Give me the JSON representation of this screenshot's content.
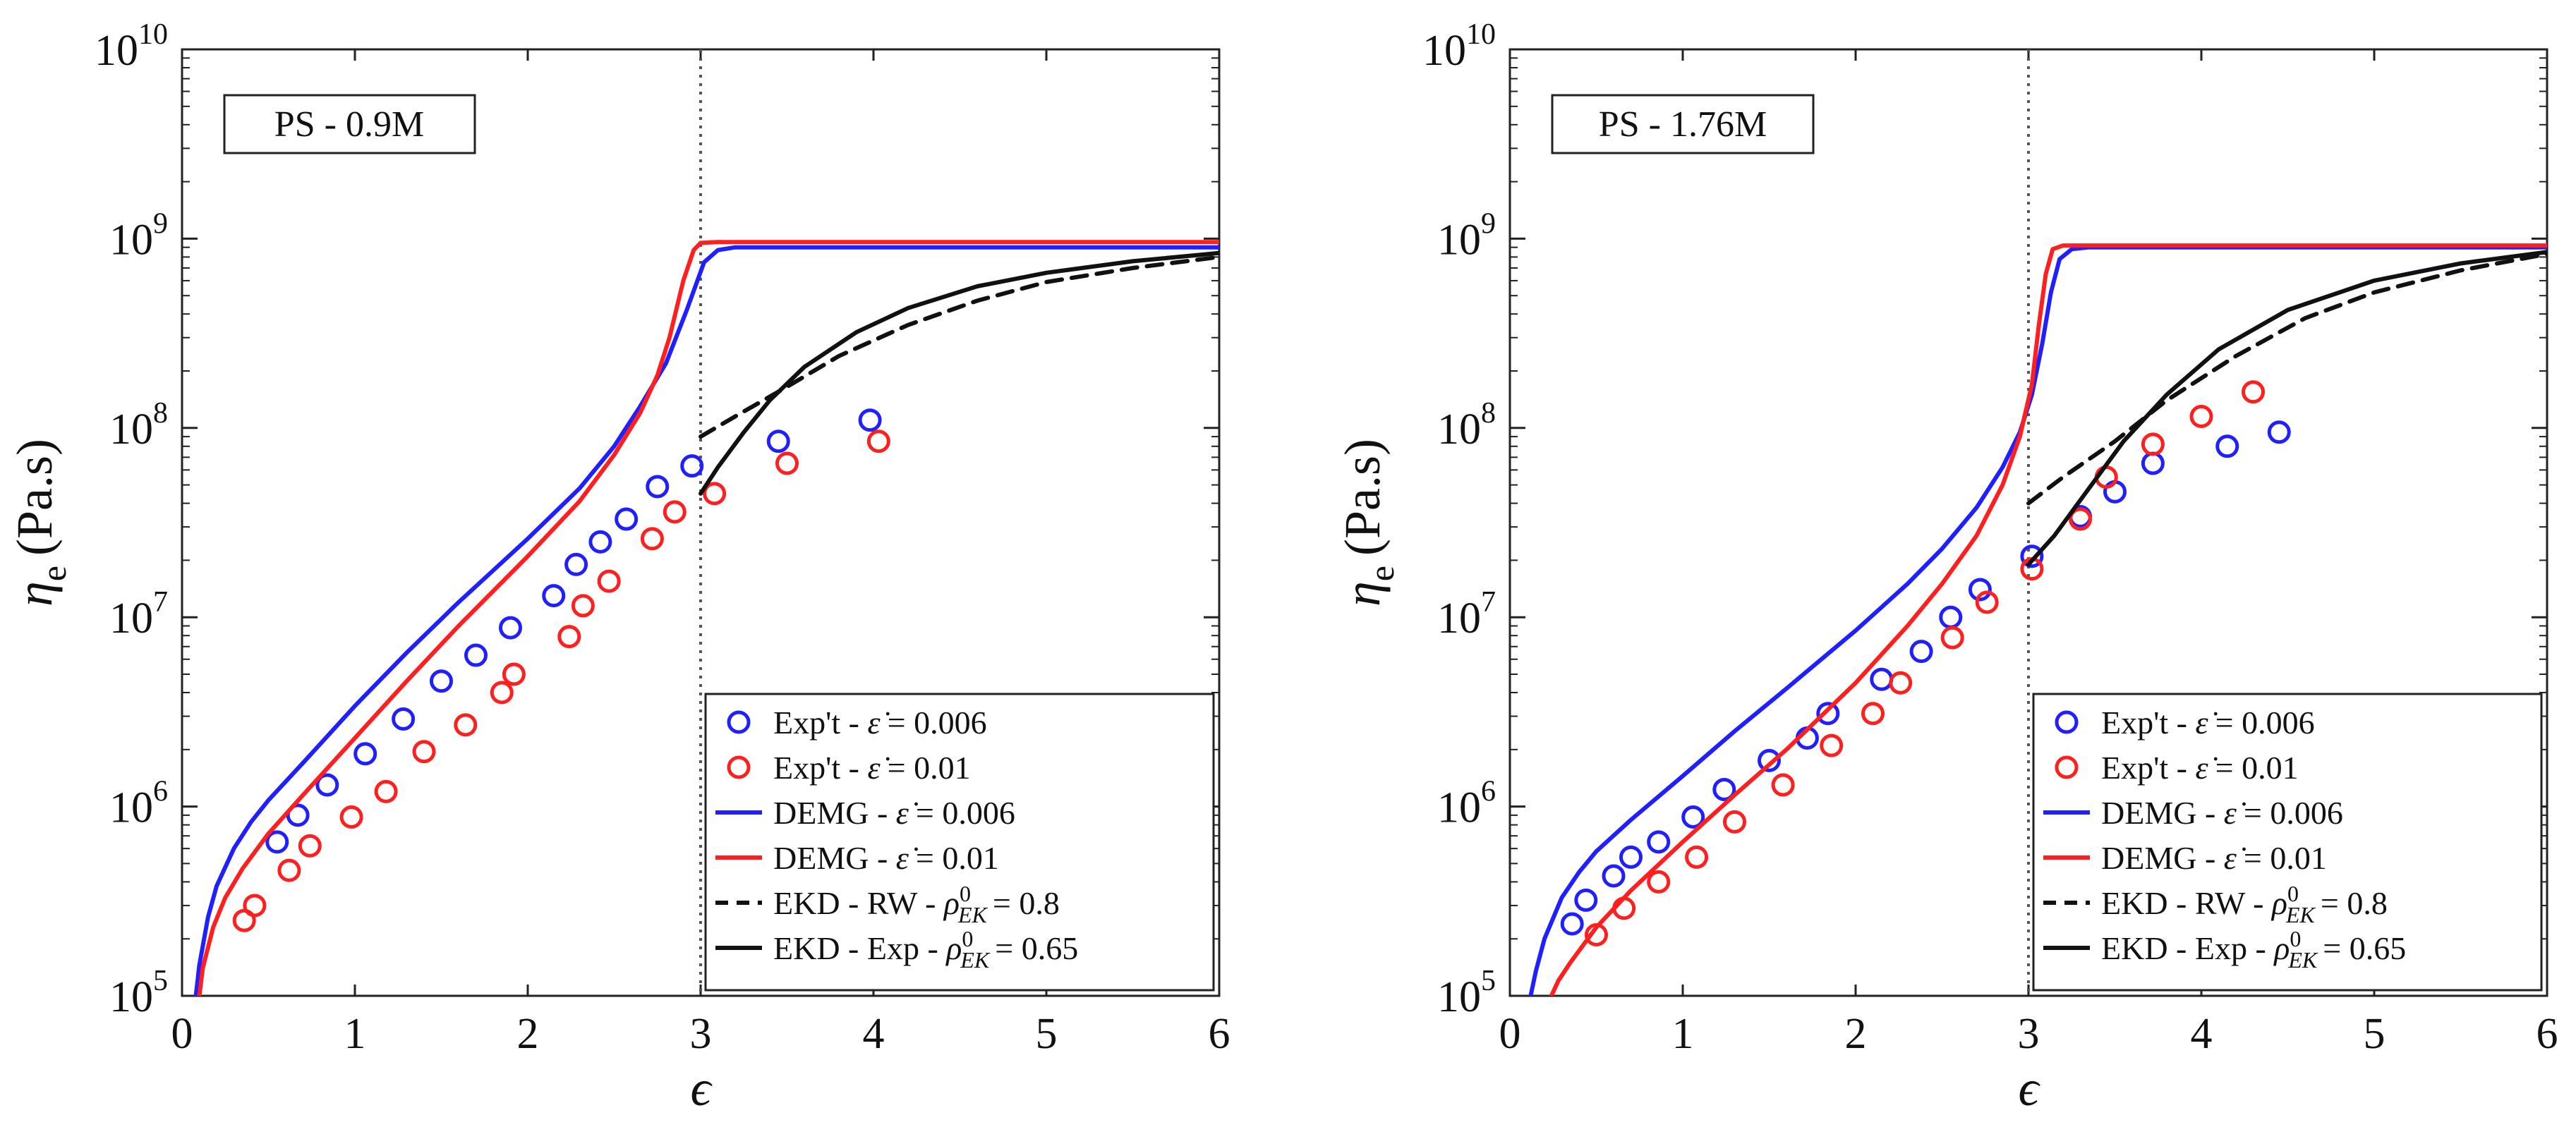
{
  "chart_data": [
    {
      "type": "scatter+line",
      "title": "PS - 0.9M",
      "xlabel": "ϵ",
      "ylabel": "η",
      "ylabel_sub": "e",
      "ylabel_unit": "(Pa.s)",
      "xlim": [
        0,
        6
      ],
      "ylim": [
        100000,
        10000000000
      ],
      "yscale": "log",
      "xticks": [
        "0",
        "1",
        "2",
        "3",
        "4",
        "5",
        "6"
      ],
      "yticks": [
        {
          "base": "10",
          "exp": "5"
        },
        {
          "base": "10",
          "exp": "6"
        },
        {
          "base": "10",
          "exp": "7"
        },
        {
          "base": "10",
          "exp": "8"
        },
        {
          "base": "10",
          "exp": "9"
        },
        {
          "base": "10",
          "exp": "10"
        }
      ],
      "vline_x": 3,
      "legend_position": "bottom-right",
      "series": [
        {
          "name": "Exp't - ε̇ = 0.006",
          "label": "Exp't - ",
          "rate": "= 0.006",
          "kind": "marker",
          "color": "#1f1fff",
          "x": [
            0.55,
            0.67,
            0.84,
            1.06,
            1.28,
            1.5,
            1.7,
            1.9,
            2.15,
            2.28,
            2.42,
            2.57,
            2.75,
            2.95,
            3.45,
            3.98
          ],
          "y": [
            650000,
            900000,
            1300000,
            1900000,
            2900000,
            4600000,
            6300000,
            8800000,
            13000000,
            19000000,
            25000000,
            33000000,
            49000000,
            63000000,
            85000000,
            110000000
          ]
        },
        {
          "name": "Exp't - ε̇ = 0.01",
          "label": "Exp't - ",
          "rate": "= 0.01",
          "kind": "marker",
          "color": "#ff1f1f",
          "x": [
            0.36,
            0.42,
            0.62,
            0.74,
            0.98,
            1.18,
            1.4,
            1.64,
            1.85,
            1.92,
            2.24,
            2.32,
            2.47,
            2.72,
            2.85,
            3.08,
            3.5,
            4.03
          ],
          "y": [
            250000,
            300000,
            460000,
            620000,
            880000,
            1200000,
            1950000,
            2700000,
            4000000,
            5000000,
            7900000,
            11500000,
            15500000,
            26000000,
            36000000,
            45000000,
            65000000,
            85000000
          ]
        },
        {
          "name": "DEMG - ε̇ = 0.006",
          "label": "DEMG - ",
          "rate": "= 0.006",
          "kind": "line",
          "color": "#1f1fff",
          "dash": "solid",
          "x": [
            0.08,
            0.1,
            0.15,
            0.2,
            0.3,
            0.4,
            0.5,
            0.7,
            1,
            1.3,
            1.6,
            2,
            2.3,
            2.5,
            2.65,
            2.8,
            2.92,
            3.02,
            3.1,
            3.2,
            3.5,
            4,
            5,
            6
          ],
          "y": [
            100000,
            145000,
            260000,
            380000,
            600000,
            830000,
            1080000,
            1700000,
            3400000,
            6500000,
            12000000,
            26000000,
            48000000,
            80000000,
            130000000,
            220000000,
            420000000,
            750000000,
            870000000,
            900000000,
            900000000,
            900000000,
            900000000,
            900000000
          ]
        },
        {
          "name": "DEMG - ε̇ = 0.01",
          "label": "DEMG - ",
          "rate": "= 0.01",
          "kind": "line",
          "color": "#ff1f1f",
          "dash": "solid",
          "x": [
            0.1,
            0.12,
            0.18,
            0.25,
            0.35,
            0.5,
            0.7,
            1,
            1.3,
            1.6,
            2,
            2.3,
            2.5,
            2.65,
            2.75,
            2.82,
            2.9,
            2.96,
            3,
            3.1,
            4,
            5,
            6
          ],
          "y": [
            100000,
            140000,
            230000,
            330000,
            470000,
            720000,
            1150000,
            2300000,
            4600000,
            9000000,
            21000000,
            41000000,
            72000000,
            120000000,
            190000000,
            300000000,
            600000000,
            870000000,
            950000000,
            960000000,
            960000000,
            960000000,
            960000000
          ]
        },
        {
          "name": "EKD - RW - ρ⁰EK = 0.8",
          "label": "EKD - RW - ",
          "rate": "= 0.8",
          "kind": "line",
          "color": "#111111",
          "dash": "dashed",
          "x": [
            3,
            3.2,
            3.5,
            3.8,
            4.2,
            4.6,
            5,
            5.5,
            6
          ],
          "y": [
            90000000,
            115000000,
            165000000,
            240000000,
            350000000,
            470000000,
            590000000,
            700000000,
            800000000
          ]
        },
        {
          "name": "EKD - Exp - ρ⁰EK = 0.65",
          "label": "EKD - Exp - ",
          "rate": "= 0.65",
          "kind": "line",
          "color": "#111111",
          "dash": "solid",
          "x": [
            3,
            3.1,
            3.25,
            3.4,
            3.6,
            3.9,
            4.2,
            4.6,
            5,
            5.5,
            6
          ],
          "y": [
            45000000,
            62000000,
            95000000,
            140000000,
            210000000,
            320000000,
            430000000,
            560000000,
            660000000,
            760000000,
            840000000
          ]
        }
      ]
    },
    {
      "type": "scatter+line",
      "title": "PS - 1.76M",
      "xlabel": "ϵ",
      "ylabel": "η",
      "ylabel_sub": "e",
      "ylabel_unit": "(Pa.s)",
      "xlim": [
        0,
        6
      ],
      "ylim": [
        100000,
        10000000000
      ],
      "yscale": "log",
      "xticks": [
        "0",
        "1",
        "2",
        "3",
        "4",
        "5",
        "6"
      ],
      "yticks": [
        {
          "base": "10",
          "exp": "5"
        },
        {
          "base": "10",
          "exp": "6"
        },
        {
          "base": "10",
          "exp": "7"
        },
        {
          "base": "10",
          "exp": "8"
        },
        {
          "base": "10",
          "exp": "9"
        },
        {
          "base": "10",
          "exp": "10"
        }
      ],
      "vline_x": 3,
      "legend_position": "bottom-right",
      "series": [
        {
          "name": "Exp't - ε̇ = 0.006",
          "label": "Exp't - ",
          "rate": "= 0.006",
          "kind": "marker",
          "color": "#1f1fff",
          "x": [
            0.36,
            0.44,
            0.6,
            0.7,
            0.86,
            1.06,
            1.24,
            1.5,
            1.72,
            1.84,
            2.15,
            2.38,
            2.55,
            2.72,
            3.02,
            3.3,
            3.5,
            3.72,
            4.15,
            4.45
          ],
          "y": [
            240000,
            320000,
            430000,
            540000,
            650000,
            880000,
            1230000,
            1750000,
            2300000,
            3100000,
            4700000,
            6600000,
            10000000,
            14000000,
            21000000,
            34000000,
            46000000,
            65000000,
            80000000,
            95000000
          ]
        },
        {
          "name": "Exp't - ε̇ = 0.01",
          "label": "Exp't - ",
          "rate": "= 0.01",
          "kind": "marker",
          "color": "#ff1f1f",
          "x": [
            0.5,
            0.66,
            0.86,
            1.08,
            1.3,
            1.58,
            1.86,
            2.1,
            2.26,
            2.56,
            2.76,
            3.02,
            3.3,
            3.45,
            3.72,
            4.0,
            4.3
          ],
          "y": [
            210000,
            290000,
            400000,
            540000,
            830000,
            1300000,
            2100000,
            3100000,
            4500000,
            7800000,
            12000000,
            18000000,
            33000000,
            55000000,
            82000000,
            115000000,
            155000000
          ]
        },
        {
          "name": "DEMG - ε̇ = 0.006",
          "label": "DEMG - ",
          "rate": "= 0.006",
          "kind": "line",
          "color": "#1f1fff",
          "dash": "solid",
          "x": [
            0.12,
            0.15,
            0.2,
            0.3,
            0.4,
            0.5,
            0.7,
            1,
            1.3,
            1.6,
            2,
            2.3,
            2.5,
            2.7,
            2.85,
            2.95,
            3.02,
            3.08,
            3.13,
            3.18,
            3.25,
            3.35,
            4,
            5,
            6
          ],
          "y": [
            100000,
            135000,
            200000,
            330000,
            450000,
            580000,
            850000,
            1450000,
            2500000,
            4200000,
            8500000,
            15000000,
            23000000,
            38000000,
            62000000,
            95000000,
            150000000,
            280000000,
            520000000,
            780000000,
            880000000,
            900000000,
            900000000,
            900000000,
            900000000
          ]
        },
        {
          "name": "DEMG - ε̇ = 0.01",
          "label": "DEMG - ",
          "rate": "= 0.01",
          "kind": "line",
          "color": "#ff1f1f",
          "dash": "solid",
          "x": [
            0.24,
            0.28,
            0.35,
            0.5,
            0.7,
            1,
            1.3,
            1.6,
            2,
            2.3,
            2.5,
            2.7,
            2.85,
            2.95,
            3.02,
            3.06,
            3.1,
            3.14,
            3.2,
            4,
            5,
            6
          ],
          "y": [
            100000,
            120000,
            150000,
            230000,
            360000,
            650000,
            1150000,
            2000000,
            4500000,
            9000000,
            15000000,
            27000000,
            50000000,
            90000000,
            170000000,
            350000000,
            650000000,
            880000000,
            920000000,
            920000000,
            920000000,
            920000000
          ]
        },
        {
          "name": "EKD - RW - ρ⁰EK = 0.8",
          "label": "EKD - RW - ",
          "rate": "= 0.8",
          "kind": "line",
          "color": "#111111",
          "dash": "dashed",
          "x": [
            3,
            3.2,
            3.5,
            3.8,
            4.2,
            4.6,
            5,
            5.5,
            6
          ],
          "y": [
            40000000,
            55000000,
            85000000,
            140000000,
            240000000,
            380000000,
            520000000,
            680000000,
            830000000
          ]
        },
        {
          "name": "EKD - Exp - ρ⁰EK = 0.65",
          "label": "EKD - Exp - ",
          "rate": "= 0.65",
          "kind": "line",
          "color": "#111111",
          "dash": "solid",
          "x": [
            3,
            3.15,
            3.35,
            3.55,
            3.8,
            4.1,
            4.5,
            5,
            5.5,
            6
          ],
          "y": [
            19000000,
            27000000,
            48000000,
            85000000,
            150000000,
            260000000,
            420000000,
            600000000,
            740000000,
            850000000
          ]
        }
      ]
    }
  ]
}
